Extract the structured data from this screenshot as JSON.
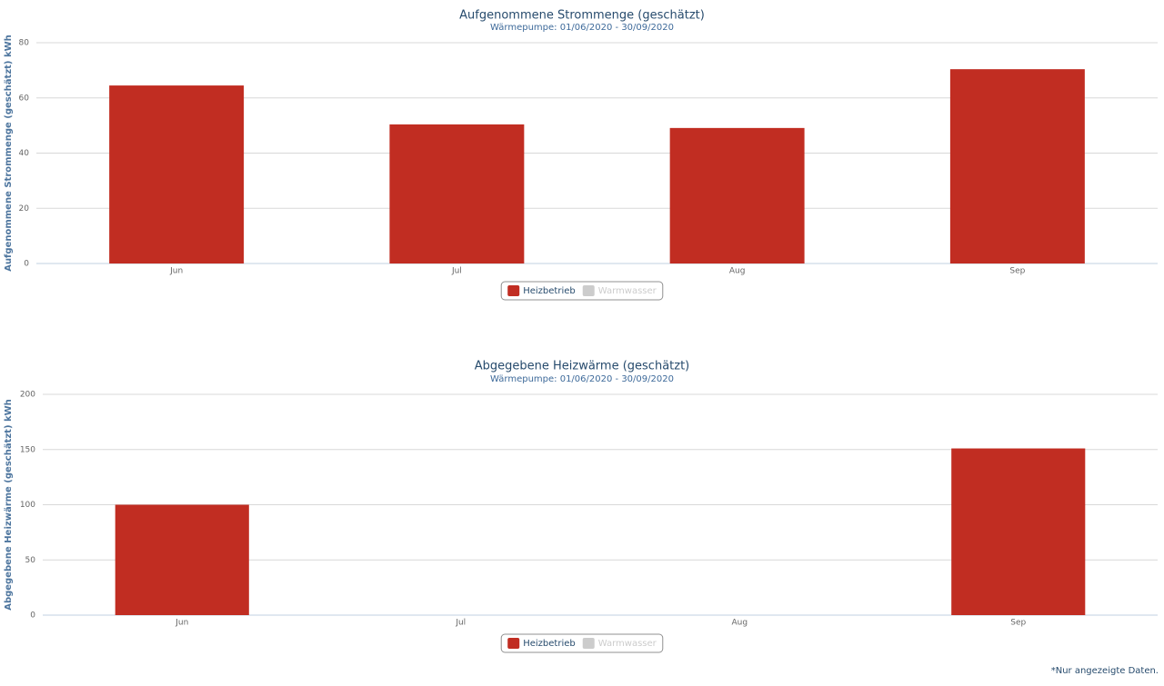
{
  "chart_data": [
    {
      "type": "bar",
      "title": "Aufgenommene Strommenge (geschätzt)",
      "subtitle": "Wärmepumpe: 01/06/2020 - 30/09/2020",
      "y_label": "Aufgenommene Strommenge (geschätzt) kWh",
      "categories": [
        "Jun",
        "Jul",
        "Aug",
        "Sep"
      ],
      "series": [
        {
          "name": "Heizbetrieb",
          "color": "#c12d22",
          "visible": true,
          "values": [
            64.5,
            50.4,
            49.1,
            70.4
          ]
        },
        {
          "name": "Warmwasser",
          "color": "#cccccc",
          "visible": false,
          "values": [
            null,
            null,
            null,
            null
          ]
        }
      ],
      "ylim": [
        0,
        80
      ],
      "yticks": [
        0,
        20,
        40,
        60,
        80
      ],
      "grid": true
    },
    {
      "type": "bar",
      "title": "Abgegebene Heizwärme (geschätzt)",
      "subtitle": "Wärmepumpe: 01/06/2020 - 30/09/2020",
      "y_label": "Abgegebene Heizwärme (geschätzt) kWh",
      "categories": [
        "Jun",
        "Jul",
        "Aug",
        "Sep"
      ],
      "series": [
        {
          "name": "Heizbetrieb",
          "color": "#c12d22",
          "visible": true,
          "values": [
            100,
            null,
            null,
            151
          ]
        },
        {
          "name": "Warmwasser",
          "color": "#cccccc",
          "visible": false,
          "values": [
            null,
            null,
            null,
            null
          ]
        }
      ],
      "ylim": [
        0,
        200
      ],
      "yticks": [
        0,
        50,
        100,
        150,
        200
      ],
      "grid": true
    }
  ],
  "footnote": "*Nur angezeigte Daten."
}
